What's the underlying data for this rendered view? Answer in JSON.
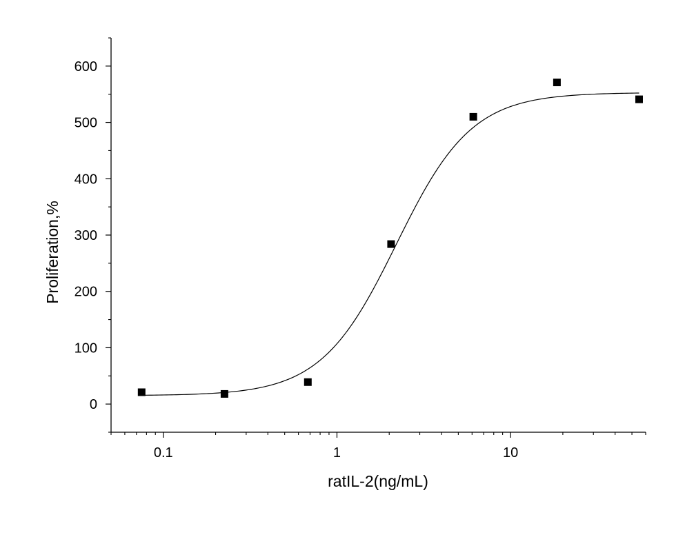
{
  "chart_data": {
    "type": "scatter",
    "title": "",
    "xlabel": "ratIL-2(ng/mL)",
    "ylabel": "Proliferation,%",
    "x_scale": "log",
    "xlim": [
      0.05,
      60
    ],
    "ylim": [
      -50,
      650
    ],
    "x_ticks": [
      {
        "value": 0.1,
        "label": "0.1"
      },
      {
        "value": 1,
        "label": "1"
      },
      {
        "value": 10,
        "label": "10"
      }
    ],
    "y_ticks": [
      {
        "value": 0,
        "label": "0"
      },
      {
        "value": 100,
        "label": "100"
      },
      {
        "value": 200,
        "label": "200"
      },
      {
        "value": 300,
        "label": "300"
      },
      {
        "value": 400,
        "label": "400"
      },
      {
        "value": 500,
        "label": "500"
      },
      {
        "value": 600,
        "label": "600"
      }
    ],
    "series": [
      {
        "marker": "square",
        "color": "#000000",
        "points": [
          {
            "x": 0.075,
            "y": 21
          },
          {
            "x": 0.225,
            "y": 18
          },
          {
            "x": 0.68,
            "y": 39
          },
          {
            "x": 2.05,
            "y": 284
          },
          {
            "x": 6.1,
            "y": 510
          },
          {
            "x": 18.5,
            "y": 571
          },
          {
            "x": 55,
            "y": 541
          }
        ]
      }
    ],
    "fit_curve": {
      "model": "4PL",
      "bottom": 15,
      "top": 553,
      "ec50": 2.2,
      "hill": 2.0,
      "x_range": [
        0.075,
        55
      ],
      "color": "#000000"
    },
    "grid": false,
    "legend": "none"
  }
}
